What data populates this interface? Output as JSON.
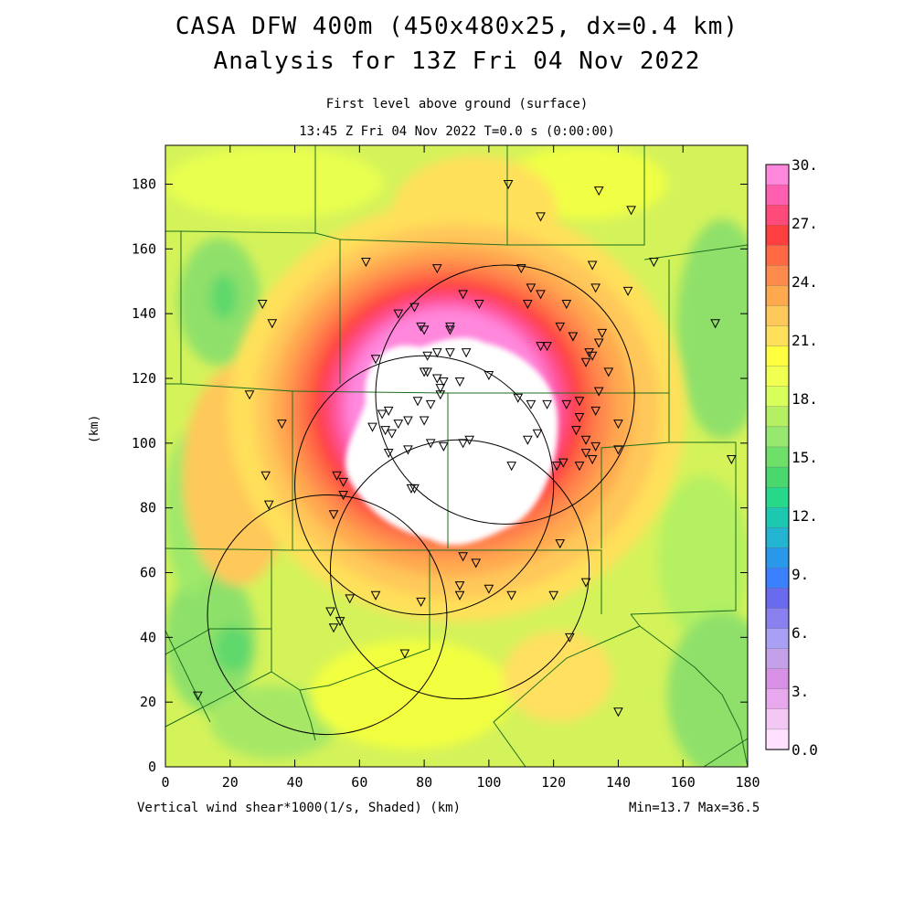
{
  "header": {
    "title_line1": "CASA DFW 400m (450x480x25, dx=0.4 km)",
    "title_line2": "Analysis for 13Z Fri 04 Nov 2022",
    "subtitle_line1": "First level above ground (surface)",
    "subtitle_line2": "13:45 Z Fri 04 Nov 2022   T=0.0 s (0:00:00)"
  },
  "footer": {
    "field_label": "Vertical wind shear*1000(1/s, Shaded)  (km)",
    "minmax": "Min=13.7 Max=36.5"
  },
  "chart_data": {
    "type": "heatmap",
    "title": "CASA DFW 400m (450x480x25, dx=0.4 km)",
    "ylabel": "(km)",
    "xlim": [
      0,
      180
    ],
    "ylim": [
      0,
      192
    ],
    "x_ticks": [
      0,
      20,
      40,
      60,
      80,
      100,
      120,
      140,
      160,
      180
    ],
    "y_ticks": [
      0,
      20,
      40,
      60,
      80,
      100,
      120,
      140,
      160,
      180
    ],
    "colorbar": {
      "labels": [
        "30.",
        "27.",
        "24.",
        "21.",
        "18.",
        "15.",
        "12.",
        "9.",
        "6.",
        "3.",
        "0.0"
      ],
      "colors_top_to_bottom": [
        "#ff88dd",
        "#ff5fb0",
        "#ff4a7a",
        "#ff3f3f",
        "#ff6a45",
        "#ff8a4e",
        "#ffa94f",
        "#ffc85a",
        "#ffe05a",
        "#ffff40",
        "#f0ff50",
        "#d6ff5c",
        "#b4f062",
        "#96e86e",
        "#6ee06a",
        "#48d86e",
        "#27d88a",
        "#1dc8b0",
        "#22b4d0",
        "#2a98ea",
        "#3a80ff",
        "#6a6aee",
        "#8a80f0",
        "#a8a0f5",
        "#c4a0e8",
        "#d890e6",
        "#e8a8ee",
        "#f4c8f4",
        "#ffe0ff"
      ]
    },
    "min": 13.7,
    "max": 36.5,
    "radar_rings_km": [
      {
        "cx": 105,
        "cy": 115,
        "r": 40
      },
      {
        "cx": 80,
        "cy": 87,
        "r": 40
      },
      {
        "cx": 50,
        "cy": 47,
        "r": 37
      },
      {
        "cx": 91,
        "cy": 61,
        "r": 40
      }
    ],
    "stations_km": [
      [
        30,
        143
      ],
      [
        33,
        137
      ],
      [
        36,
        106
      ],
      [
        26,
        115
      ],
      [
        31,
        90
      ],
      [
        32,
        81
      ],
      [
        53,
        90
      ],
      [
        55,
        88
      ],
      [
        55,
        84
      ],
      [
        52,
        78
      ],
      [
        62,
        156
      ],
      [
        65,
        126
      ],
      [
        64,
        105
      ],
      [
        67,
        109
      ],
      [
        68,
        104
      ],
      [
        70,
        103
      ],
      [
        72,
        106
      ],
      [
        69,
        97
      ],
      [
        72,
        140
      ],
      [
        77,
        142
      ],
      [
        79,
        136
      ],
      [
        80,
        135
      ],
      [
        81,
        127
      ],
      [
        84,
        128
      ],
      [
        80,
        122
      ],
      [
        81,
        122
      ],
      [
        84,
        120
      ],
      [
        85,
        117
      ],
      [
        86,
        119
      ],
      [
        88,
        136
      ],
      [
        84,
        154
      ],
      [
        92,
        146
      ],
      [
        97,
        143
      ],
      [
        91,
        119
      ],
      [
        82,
        112
      ],
      [
        85,
        115
      ],
      [
        78,
        113
      ],
      [
        75,
        107
      ],
      [
        75,
        98
      ],
      [
        80,
        107
      ],
      [
        82,
        100
      ],
      [
        86,
        99
      ],
      [
        92,
        100
      ],
      [
        94,
        101
      ],
      [
        93,
        128
      ],
      [
        76,
        86
      ],
      [
        77,
        86
      ],
      [
        92,
        65
      ],
      [
        91,
        56
      ],
      [
        96,
        63
      ],
      [
        100,
        55
      ],
      [
        106,
        180
      ],
      [
        110,
        154
      ],
      [
        113,
        148
      ],
      [
        112,
        143
      ],
      [
        116,
        146
      ],
      [
        116,
        130
      ],
      [
        118,
        130
      ],
      [
        124,
        143
      ],
      [
        122,
        136
      ],
      [
        126,
        133
      ],
      [
        126,
        133
      ],
      [
        131,
        128
      ],
      [
        132,
        127
      ],
      [
        130,
        125
      ],
      [
        134,
        131
      ],
      [
        135,
        134
      ],
      [
        133,
        148
      ],
      [
        132,
        155
      ],
      [
        137,
        122
      ],
      [
        134,
        116
      ],
      [
        133,
        110
      ],
      [
        128,
        113
      ],
      [
        128,
        108
      ],
      [
        130,
        101
      ],
      [
        130,
        97
      ],
      [
        132,
        95
      ],
      [
        128,
        93
      ],
      [
        123,
        94
      ],
      [
        121,
        93
      ],
      [
        115,
        103
      ],
      [
        112,
        101
      ],
      [
        107,
        93
      ],
      [
        100,
        121
      ],
      [
        109,
        114
      ],
      [
        113,
        112
      ],
      [
        118,
        112
      ],
      [
        124,
        112
      ],
      [
        127,
        104
      ],
      [
        122,
        69
      ],
      [
        116,
        170
      ],
      [
        134,
        178
      ],
      [
        144,
        172
      ],
      [
        151,
        156
      ],
      [
        143,
        147
      ],
      [
        170,
        137
      ],
      [
        175,
        95
      ],
      [
        140,
        106
      ],
      [
        140,
        98
      ],
      [
        133,
        99
      ],
      [
        130,
        57
      ],
      [
        125,
        40
      ],
      [
        140,
        17
      ],
      [
        120,
        53
      ],
      [
        107,
        53
      ],
      [
        91,
        53
      ],
      [
        79,
        51
      ],
      [
        65,
        53
      ],
      [
        57,
        52
      ],
      [
        51,
        48
      ],
      [
        54,
        45
      ],
      [
        52,
        43
      ],
      [
        74,
        35
      ],
      [
        10,
        22
      ],
      [
        69,
        110
      ],
      [
        88,
        135
      ],
      [
        88,
        128
      ]
    ]
  }
}
